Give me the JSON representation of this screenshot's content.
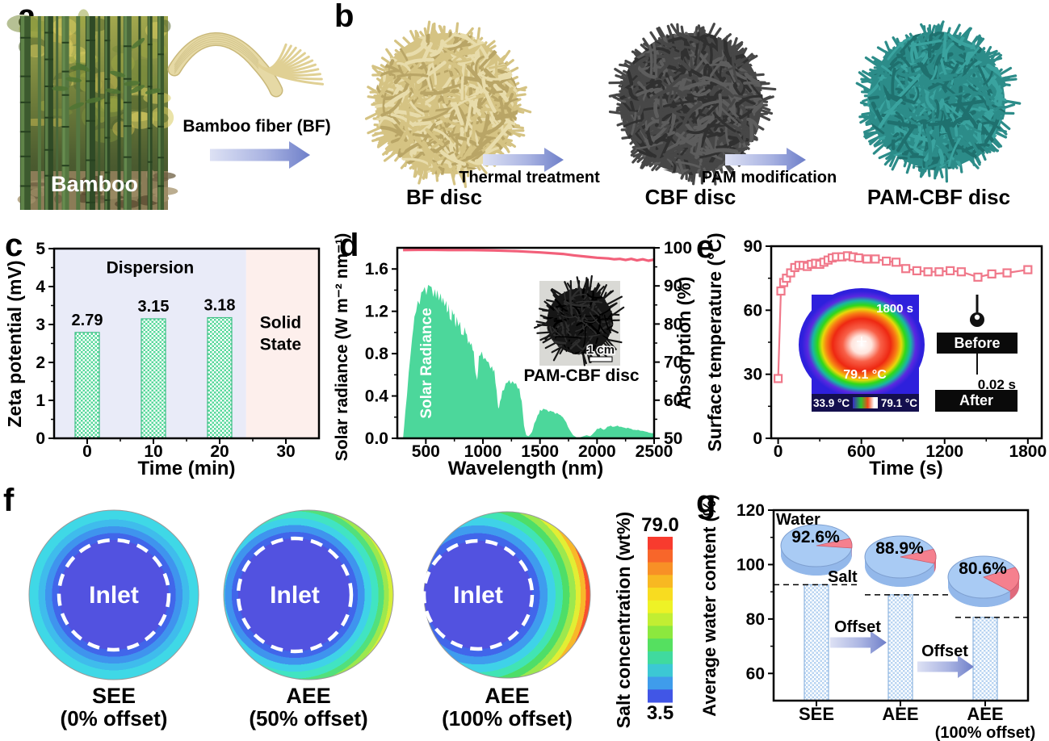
{
  "figure": {
    "panels": {
      "a": {
        "letter": "a",
        "photo_caption": "Bamboo",
        "fiber_label": "Bamboo fiber (BF)"
      },
      "b": {
        "letter": "b",
        "disc_labels": [
          "BF disc",
          "CBF disc",
          "PAM-CBF disc"
        ],
        "step_labels": [
          "Thermal treatment",
          "PAM modification"
        ],
        "disc_colors": [
          "#d5c383",
          "#474747",
          "#2c8c89"
        ]
      },
      "c": {
        "letter": "c"
      },
      "d": {
        "letter": "d",
        "area_label": "Solar Radiance",
        "inset_scale": "1 cm",
        "inset_caption": "PAM-CBF disc"
      },
      "e": {
        "letter": "e",
        "thermal": {
          "time": "1800 s",
          "center_temp": "79.1 °C",
          "scale_min": "33.9 °C",
          "scale_max": "79.1 °C"
        },
        "droplet": {
          "before": "Before",
          "time": "0.02 s",
          "after": "After"
        }
      },
      "f": {
        "letter": "f"
      },
      "g": {
        "letter": "g",
        "water_label": "Water",
        "salt_label": "Salt",
        "offset_label": "Offset"
      }
    }
  },
  "chart_data": [
    {
      "id": "c",
      "type": "bar",
      "title": "",
      "categories": [
        0,
        10,
        20
      ],
      "values": [
        2.79,
        3.15,
        3.18
      ],
      "bar_labels": [
        "2.79",
        "3.15",
        "3.18"
      ],
      "xlabel": "Time (min)",
      "ylabel": "Zeta potential (mV)",
      "xlim": [
        -5,
        35
      ],
      "xticks": [
        0,
        10,
        20,
        30
      ],
      "xtick_labels": [
        "0",
        "10",
        "20",
        "30"
      ],
      "xminor": [
        5,
        15,
        25
      ],
      "ylim": [
        0,
        5
      ],
      "yticks": [
        0,
        1,
        2,
        3,
        4,
        5
      ],
      "ytick_labels": [
        "0",
        "1",
        "2",
        "3",
        "4",
        "5"
      ],
      "yminor": [
        0.5,
        1.5,
        2.5,
        3.5,
        4.5
      ],
      "bar_color": "#57d89b",
      "bar_edge": "#3fbf85",
      "regions": [
        {
          "label_lines": [
            "Dispersion"
          ],
          "from": -5,
          "to": 24,
          "color": "#e9ebf8",
          "label_x": 9.5,
          "label_y": 4.35
        },
        {
          "label_lines": [
            "Solid",
            "State"
          ],
          "from": 24,
          "to": 35,
          "color": "#fdefec",
          "label_x": 29.2,
          "label_y": 2.9
        }
      ]
    },
    {
      "id": "d",
      "type": "area+line",
      "xlabel": "Wavelength (nm)",
      "ylabel_left": "Solar radiance (W m⁻² nm⁻¹)",
      "ylabel_right": "Absorption (%)",
      "xlim": [
        250,
        2500
      ],
      "xticks": [
        500,
        1000,
        1500,
        2000,
        2500
      ],
      "xtick_labels": [
        "500",
        "1000",
        "1500",
        "2000",
        "2500"
      ],
      "xminor": [
        750,
        1250,
        1750,
        2250
      ],
      "ylim_left": [
        0,
        1.8
      ],
      "yticks_left": [
        0,
        0.4,
        0.8,
        1.2,
        1.6
      ],
      "ytick_labels_left": [
        "0.0",
        "0.4",
        "0.8",
        "1.2",
        "1.6"
      ],
      "yminor_left": [
        0.2,
        0.6,
        1.0,
        1.4
      ],
      "ylim_right": [
        50,
        100
      ],
      "yticks_right": [
        50,
        60,
        70,
        80,
        90,
        100
      ],
      "ytick_labels_right": [
        "50",
        "60",
        "70",
        "80",
        "90",
        "100"
      ],
      "yminor_right": [
        55,
        65,
        75,
        85,
        95
      ],
      "series": [
        {
          "name": "Solar Radiance",
          "type": "area",
          "color": "#4cd79b",
          "x": [
            300,
            320,
            350,
            380,
            400,
            430,
            460,
            490,
            520,
            550,
            580,
            600,
            630,
            650,
            680,
            690,
            700,
            720,
            730,
            750,
            760,
            770,
            800,
            820,
            840,
            860,
            880,
            900,
            920,
            935,
            950,
            965,
            990,
            1020,
            1050,
            1080,
            1100,
            1120,
            1135,
            1150,
            1170,
            1200,
            1230,
            1260,
            1290,
            1320,
            1340,
            1360,
            1380,
            1400,
            1430,
            1450,
            1480,
            1500,
            1530,
            1560,
            1590,
            1620,
            1650,
            1680,
            1700,
            1730,
            1760,
            1790,
            1820,
            1850,
            1880,
            1910,
            1940,
            1970,
            2000,
            2030,
            2060,
            2090,
            2120,
            2150,
            2180,
            2210,
            2240,
            2270,
            2300,
            2330,
            2360,
            2400,
            2440,
            2470,
            2500
          ],
          "y": [
            0,
            0.25,
            0.62,
            0.95,
            1.15,
            1.3,
            1.38,
            1.43,
            1.45,
            1.43,
            1.41,
            1.4,
            1.37,
            1.33,
            1.3,
            1.2,
            1.27,
            1.12,
            1.22,
            1.18,
            1.05,
            1.15,
            1.1,
            0.98,
            1.05,
            0.98,
            0.92,
            0.9,
            0.82,
            0.62,
            0.55,
            0.78,
            0.82,
            0.76,
            0.72,
            0.68,
            0.65,
            0.45,
            0.28,
            0.35,
            0.45,
            0.52,
            0.55,
            0.54,
            0.52,
            0.47,
            0.35,
            0.12,
            0.03,
            0.02,
            0.06,
            0.14,
            0.22,
            0.27,
            0.28,
            0.27,
            0.26,
            0.25,
            0.24,
            0.22,
            0.2,
            0.15,
            0.08,
            0.03,
            0.01,
            0.01,
            0.02,
            0.03,
            0.02,
            0.05,
            0.09,
            0.1,
            0.08,
            0.11,
            0.12,
            0.11,
            0.12,
            0.11,
            0.1,
            0.1,
            0.09,
            0.08,
            0.08,
            0.07,
            0.06,
            0.05,
            0.05
          ]
        },
        {
          "name": "Absorption",
          "type": "line",
          "color": "#f2607a",
          "x": [
            300,
            500,
            700,
            900,
            1100,
            1300,
            1500,
            1700,
            1800,
            1900,
            2000,
            2100,
            2150,
            2200,
            2250,
            2300,
            2350,
            2400,
            2450,
            2500
          ],
          "y": [
            99.4,
            99.5,
            99.4,
            99.4,
            99.3,
            99.1,
            98.8,
            98.4,
            98.0,
            97.7,
            97.4,
            97.2,
            97.0,
            97.1,
            96.8,
            97.1,
            96.7,
            97.0,
            96.6,
            96.9
          ]
        }
      ]
    },
    {
      "id": "e",
      "type": "line",
      "xlabel": "Time (s)",
      "ylabel": "Surface temperature (°C)",
      "xlim": [
        -50,
        1900
      ],
      "xticks": [
        0,
        600,
        1200,
        1800
      ],
      "xtick_labels": [
        "0",
        "600",
        "1200",
        "1800"
      ],
      "xminor": [
        300,
        900,
        1500
      ],
      "ylim": [
        0,
        90
      ],
      "yticks": [
        0,
        30,
        60,
        90
      ],
      "ytick_labels": [
        "0",
        "30",
        "60",
        "90"
      ],
      "yminor": [
        15,
        45,
        75
      ],
      "series": [
        {
          "name": "Surface temperature",
          "color": "#f0788a",
          "marker": "open-square",
          "x": [
            0,
            20,
            40,
            60,
            90,
            120,
            150,
            180,
            210,
            240,
            270,
            300,
            330,
            360,
            390,
            420,
            460,
            500,
            540,
            580,
            640,
            700,
            780,
            850,
            920,
            1000,
            1080,
            1160,
            1240,
            1320,
            1440,
            1540,
            1650,
            1800
          ],
          "y": [
            28,
            69,
            73,
            75,
            77.5,
            80,
            81,
            81,
            80.5,
            81.5,
            82,
            81.5,
            82.5,
            83.5,
            84.5,
            85,
            85,
            85.5,
            85,
            84.5,
            84,
            84,
            83,
            82.5,
            79.5,
            78.5,
            78,
            78,
            78.5,
            78,
            75.5,
            77,
            77.5,
            79
          ]
        }
      ]
    },
    {
      "id": "f",
      "type": "heatmap",
      "maps": [
        {
          "name": "SEE",
          "offset_label": "(0% offset)",
          "inlet": "Inlet",
          "offset_pct": 0
        },
        {
          "name": "AEE",
          "offset_label": "(50% offset)",
          "inlet": "Inlet",
          "offset_pct": 50
        },
        {
          "name": "AEE",
          "offset_label": "(100% offset)",
          "inlet": "Inlet",
          "offset_pct": 100
        }
      ],
      "colorbar": {
        "label": "Salt concentration (wt%)",
        "min": 3.5,
        "max": 79.0,
        "max_label": "79.0",
        "min_label": "3.5",
        "band_colors": [
          "#f83b2e",
          "#f8662a",
          "#f89026",
          "#f8b822",
          "#f8dc20",
          "#eef226",
          "#c2ee32",
          "#8ce83e",
          "#55e060",
          "#40da9e",
          "#3cc8d4",
          "#3f9ceb",
          "#4156e6"
        ]
      }
    },
    {
      "id": "g",
      "type": "bar",
      "categories": [
        "SEE",
        "AEE",
        "AEE (100% offset)"
      ],
      "category_lines": [
        [
          "SEE"
        ],
        [
          "AEE"
        ],
        [
          "AEE",
          "(100% offset)"
        ]
      ],
      "values": [
        92.6,
        88.9,
        80.6
      ],
      "pie_labels": [
        "92.6%",
        "88.9%",
        "80.6%"
      ],
      "pies": [
        {
          "water": 92.6,
          "salt": 7.4
        },
        {
          "water": 88.9,
          "salt": 11.1
        },
        {
          "water": 80.6,
          "salt": 19.4
        }
      ],
      "xlabel": "",
      "ylabel": "Average water content (%)",
      "ylim": [
        50,
        120
      ],
      "yticks": [
        60,
        80,
        100,
        120
      ],
      "ytick_labels": [
        "60",
        "80",
        "100",
        "120"
      ],
      "yminor": [
        70,
        90,
        110
      ],
      "bar_color": "#b9d4f2",
      "bar_edge": "#8fb6e0",
      "pie_water_color": "#a9cbf4",
      "pie_salt_color": "#f5808e"
    }
  ]
}
